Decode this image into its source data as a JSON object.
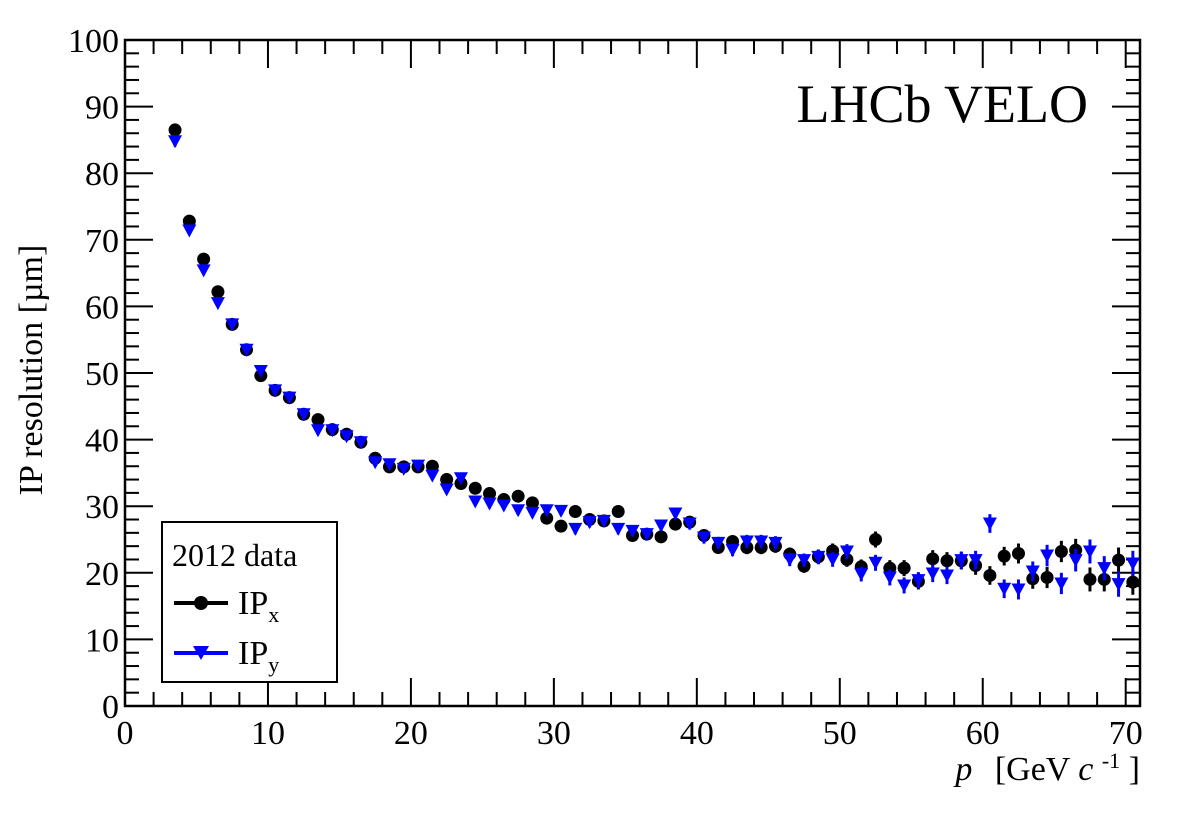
{
  "chart_data": {
    "type": "scatter",
    "title": "LHCb VELO",
    "xlabel": {
      "main": "p",
      "unit_open": "[GeV ",
      "unit_c": "c",
      "unit_exp": "-1",
      "unit_close": "]"
    },
    "ylabel": "IP resolution [µm]",
    "xlim": [
      0,
      71
    ],
    "ylim": [
      0,
      100
    ],
    "x_ticks": [
      "0",
      "10",
      "20",
      "30",
      "40",
      "50",
      "60",
      "70"
    ],
    "y_ticks": [
      "0",
      "10",
      "20",
      "30",
      "40",
      "50",
      "60",
      "70",
      "80",
      "90",
      "100"
    ],
    "legend": {
      "placement": "bottom-left",
      "header": "2012 data",
      "entries": [
        {
          "main": "IP",
          "sub": "x"
        },
        {
          "main": "IP",
          "sub": "y"
        }
      ]
    },
    "grid": false,
    "series": [
      {
        "name": "IPx",
        "color": "#000000",
        "marker": "circle",
        "points": [
          [
            3.5,
            86.5,
            0.8
          ],
          [
            4.5,
            72.8,
            0.6
          ],
          [
            5.5,
            67.1,
            0.6
          ],
          [
            6.5,
            62.2,
            0.5
          ],
          [
            7.5,
            57.3,
            0.5
          ],
          [
            8.5,
            53.5,
            0.5
          ],
          [
            9.5,
            49.6,
            0.5
          ],
          [
            10.5,
            47.4,
            0.5
          ],
          [
            11.5,
            46.3,
            0.5
          ],
          [
            12.5,
            43.8,
            0.5
          ],
          [
            13.5,
            43.0,
            0.5
          ],
          [
            14.5,
            41.5,
            0.5
          ],
          [
            15.5,
            40.8,
            0.5
          ],
          [
            16.5,
            39.6,
            0.5
          ],
          [
            17.5,
            37.2,
            0.5
          ],
          [
            18.5,
            35.9,
            0.6
          ],
          [
            19.5,
            35.9,
            0.6
          ],
          [
            20.5,
            35.9,
            0.6
          ],
          [
            21.5,
            36.0,
            0.6
          ],
          [
            22.5,
            34.0,
            0.6
          ],
          [
            23.5,
            33.4,
            0.6
          ],
          [
            24.5,
            32.7,
            0.6
          ],
          [
            25.5,
            31.9,
            0.7
          ],
          [
            26.5,
            31.0,
            0.7
          ],
          [
            27.5,
            31.5,
            0.7
          ],
          [
            28.5,
            30.5,
            0.7
          ],
          [
            29.5,
            28.2,
            0.7
          ],
          [
            30.5,
            27.0,
            0.7
          ],
          [
            31.5,
            29.2,
            0.8
          ],
          [
            32.5,
            28.0,
            0.8
          ],
          [
            33.5,
            27.8,
            0.8
          ],
          [
            34.5,
            29.2,
            0.8
          ],
          [
            35.5,
            25.6,
            0.8
          ],
          [
            36.5,
            25.8,
            0.8
          ],
          [
            37.5,
            25.4,
            0.8
          ],
          [
            38.5,
            27.3,
            0.9
          ],
          [
            39.5,
            27.6,
            0.9
          ],
          [
            40.5,
            25.6,
            0.9
          ],
          [
            41.5,
            23.8,
            0.9
          ],
          [
            42.5,
            24.7,
            0.9
          ],
          [
            43.5,
            23.8,
            1.0
          ],
          [
            44.5,
            23.8,
            1.0
          ],
          [
            45.5,
            24.0,
            1.0
          ],
          [
            46.5,
            22.8,
            1.0
          ],
          [
            47.5,
            21.0,
            1.0
          ],
          [
            48.5,
            22.4,
            1.1
          ],
          [
            49.5,
            23.3,
            1.1
          ],
          [
            50.5,
            22.0,
            1.1
          ],
          [
            51.5,
            20.9,
            1.1
          ],
          [
            52.5,
            25.0,
            1.2
          ],
          [
            53.5,
            20.7,
            1.2
          ],
          [
            54.5,
            20.7,
            1.2
          ],
          [
            55.5,
            18.7,
            1.2
          ],
          [
            56.5,
            22.1,
            1.3
          ],
          [
            57.5,
            21.8,
            1.3
          ],
          [
            58.5,
            21.8,
            1.3
          ],
          [
            59.5,
            21.1,
            1.4
          ],
          [
            60.5,
            19.6,
            1.4
          ],
          [
            61.5,
            22.5,
            1.4
          ],
          [
            62.5,
            22.9,
            1.5
          ],
          [
            63.5,
            19.1,
            1.5
          ],
          [
            64.5,
            19.3,
            1.6
          ],
          [
            65.5,
            23.2,
            1.6
          ],
          [
            66.5,
            23.4,
            1.7
          ],
          [
            67.5,
            19.0,
            1.8
          ],
          [
            68.5,
            19.0,
            1.8
          ],
          [
            69.5,
            21.9,
            1.9
          ],
          [
            70.5,
            18.6,
            1.9
          ]
        ]
      },
      {
        "name": "IPy",
        "color": "#0000ff",
        "marker": "triangle-down",
        "points": [
          [
            3.5,
            84.8,
            0.8
          ],
          [
            4.5,
            71.4,
            0.6
          ],
          [
            5.5,
            65.4,
            0.6
          ],
          [
            6.5,
            60.5,
            0.5
          ],
          [
            7.5,
            57.3,
            0.5
          ],
          [
            8.5,
            53.5,
            0.5
          ],
          [
            9.5,
            50.3,
            0.5
          ],
          [
            10.5,
            47.4,
            0.5
          ],
          [
            11.5,
            46.3,
            0.5
          ],
          [
            12.5,
            43.8,
            0.5
          ],
          [
            13.5,
            41.4,
            0.5
          ],
          [
            14.5,
            41.4,
            0.5
          ],
          [
            15.5,
            40.5,
            0.5
          ],
          [
            16.5,
            39.6,
            0.5
          ],
          [
            17.5,
            36.6,
            0.5
          ],
          [
            18.5,
            36.3,
            0.6
          ],
          [
            19.5,
            35.6,
            0.6
          ],
          [
            20.5,
            36.1,
            0.6
          ],
          [
            21.5,
            34.6,
            0.6
          ],
          [
            22.5,
            32.5,
            0.6
          ],
          [
            23.5,
            34.2,
            0.6
          ],
          [
            24.5,
            30.7,
            0.6
          ],
          [
            25.5,
            30.4,
            0.7
          ],
          [
            26.5,
            30.1,
            0.7
          ],
          [
            27.5,
            29.4,
            0.7
          ],
          [
            28.5,
            29.0,
            0.7
          ],
          [
            29.5,
            29.4,
            0.7
          ],
          [
            30.5,
            29.3,
            0.7
          ],
          [
            31.5,
            26.6,
            0.8
          ],
          [
            32.5,
            27.6,
            0.8
          ],
          [
            33.5,
            27.8,
            0.8
          ],
          [
            34.5,
            26.6,
            0.8
          ],
          [
            35.5,
            26.3,
            0.8
          ],
          [
            36.5,
            25.8,
            0.8
          ],
          [
            37.5,
            27.1,
            0.8
          ],
          [
            38.5,
            28.9,
            0.9
          ],
          [
            39.5,
            27.4,
            0.9
          ],
          [
            40.5,
            25.3,
            0.9
          ],
          [
            41.5,
            24.5,
            0.9
          ],
          [
            42.5,
            23.4,
            0.9
          ],
          [
            43.5,
            24.7,
            1.0
          ],
          [
            44.5,
            24.7,
            1.0
          ],
          [
            45.5,
            24.5,
            1.0
          ],
          [
            46.5,
            22.0,
            1.0
          ],
          [
            47.5,
            21.9,
            1.0
          ],
          [
            48.5,
            22.4,
            1.1
          ],
          [
            49.5,
            22.0,
            1.1
          ],
          [
            50.5,
            23.2,
            1.1
          ],
          [
            51.5,
            19.8,
            1.1
          ],
          [
            52.5,
            21.5,
            1.2
          ],
          [
            53.5,
            19.3,
            1.2
          ],
          [
            54.5,
            18.1,
            1.2
          ],
          [
            55.5,
            18.9,
            1.2
          ],
          [
            56.5,
            19.9,
            1.3
          ],
          [
            57.5,
            19.6,
            1.3
          ],
          [
            58.5,
            21.9,
            1.3
          ],
          [
            59.5,
            21.9,
            1.4
          ],
          [
            60.5,
            27.4,
            1.4
          ],
          [
            61.5,
            17.6,
            1.4
          ],
          [
            62.5,
            17.5,
            1.5
          ],
          [
            63.5,
            20.2,
            1.5
          ],
          [
            64.5,
            22.6,
            1.6
          ],
          [
            65.5,
            18.4,
            1.6
          ],
          [
            66.5,
            21.9,
            1.7
          ],
          [
            67.5,
            23.2,
            1.8
          ],
          [
            68.5,
            20.7,
            1.8
          ],
          [
            69.5,
            18.3,
            1.9
          ],
          [
            70.5,
            21.4,
            1.9
          ]
        ]
      }
    ]
  }
}
